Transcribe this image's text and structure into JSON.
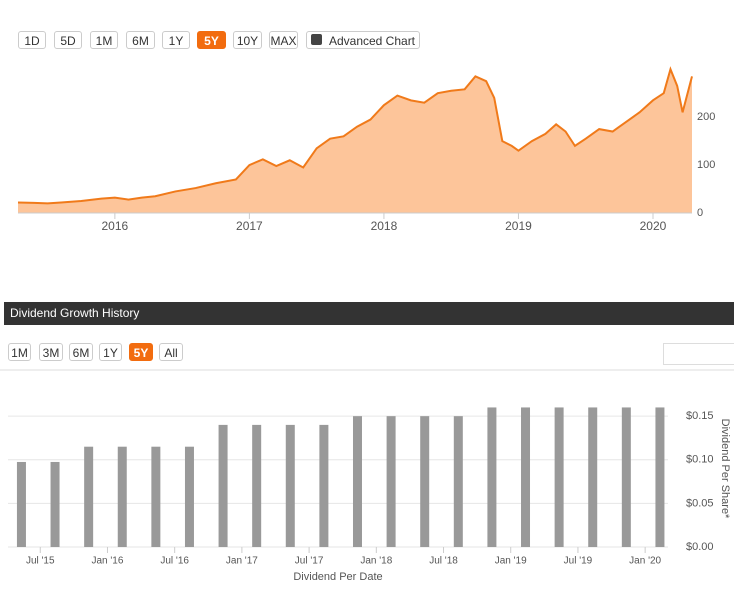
{
  "top_buttons": [
    "1D",
    "5D",
    "1M",
    "6M",
    "1Y",
    "5Y",
    "10Y",
    "MAX",
    "Advanced Chart"
  ],
  "top_active": 5,
  "section_title": "Dividend Growth History",
  "bottom_buttons": [
    "1M",
    "3M",
    "6M",
    "1Y",
    "5Y",
    "All"
  ],
  "bottom_active": 4,
  "chart_data": [
    {
      "type": "area",
      "color": "#f07a1a",
      "fill": "#fdc59a",
      "x": [
        2015.28,
        2015.4,
        2015.5,
        2015.6,
        2015.75,
        2015.9,
        2016.0,
        2016.1,
        2016.2,
        2016.3,
        2016.45,
        2016.6,
        2016.75,
        2016.9,
        2017.0,
        2017.1,
        2017.2,
        2017.3,
        2017.4,
        2017.5,
        2017.6,
        2017.7,
        2017.8,
        2017.9,
        2018.0,
        2018.1,
        2018.2,
        2018.3,
        2018.4,
        2018.5,
        2018.6,
        2018.68,
        2018.76,
        2018.82,
        2018.88,
        2018.95,
        2019.0,
        2019.1,
        2019.2,
        2019.28,
        2019.35,
        2019.42,
        2019.5,
        2019.6,
        2019.7,
        2019.8,
        2019.9,
        2020.0,
        2020.08,
        2020.13,
        2020.18,
        2020.22,
        2020.29
      ],
      "values": [
        22,
        21,
        20,
        22,
        25,
        30,
        32,
        28,
        32,
        35,
        45,
        52,
        62,
        70,
        100,
        112,
        98,
        110,
        95,
        135,
        155,
        160,
        180,
        195,
        225,
        245,
        235,
        230,
        250,
        255,
        258,
        285,
        275,
        240,
        150,
        140,
        130,
        150,
        165,
        185,
        170,
        140,
        155,
        175,
        170,
        190,
        210,
        235,
        250,
        300,
        265,
        210,
        285
      ],
      "xlim": [
        2015.28,
        2020.29
      ],
      "ylim": [
        0,
        315
      ],
      "xticks": [
        {
          "value": 2016,
          "label": "2016"
        },
        {
          "value": 2017,
          "label": "2017"
        },
        {
          "value": 2018,
          "label": "2018"
        },
        {
          "value": 2019,
          "label": "2019"
        },
        {
          "value": 2020,
          "label": "2020"
        }
      ],
      "yticks": [
        0,
        100,
        200
      ]
    },
    {
      "type": "bar",
      "color": "#999999",
      "grid": true,
      "x": [
        2015.36,
        2015.61,
        2015.86,
        2016.11,
        2016.36,
        2016.61,
        2016.86,
        2017.11,
        2017.36,
        2017.61,
        2017.86,
        2018.11,
        2018.36,
        2018.61,
        2018.86,
        2019.11,
        2019.36,
        2019.61,
        2019.86,
        2020.11
      ],
      "values": [
        0.0975,
        0.0975,
        0.115,
        0.115,
        0.115,
        0.115,
        0.14,
        0.14,
        0.14,
        0.14,
        0.15,
        0.15,
        0.15,
        0.15,
        0.16,
        0.16,
        0.16,
        0.16,
        0.16,
        0.16
      ],
      "xlim": [
        2015.26,
        2020.17
      ],
      "ylim": [
        0,
        0.18
      ],
      "xticks": [
        {
          "value": 2015.5,
          "label": "Jul '15"
        },
        {
          "value": 2016.0,
          "label": "Jan '16"
        },
        {
          "value": 2016.5,
          "label": "Jul '16"
        },
        {
          "value": 2017.0,
          "label": "Jan '17"
        },
        {
          "value": 2017.5,
          "label": "Jul '17"
        },
        {
          "value": 2018.0,
          "label": "Jan '18"
        },
        {
          "value": 2018.5,
          "label": "Jul '18"
        },
        {
          "value": 2019.0,
          "label": "Jan '19"
        },
        {
          "value": 2019.5,
          "label": "Jul '19"
        },
        {
          "value": 2020.0,
          "label": "Jan '20"
        }
      ],
      "yticks": [
        {
          "value": 0,
          "label": "$0.00"
        },
        {
          "value": 0.05,
          "label": "$0.05"
        },
        {
          "value": 0.1,
          "label": "$0.10"
        },
        {
          "value": 0.15,
          "label": "$0.15"
        }
      ],
      "xlabel": "Dividend Per Date",
      "ylabel": "Dividend Per Share*"
    }
  ]
}
